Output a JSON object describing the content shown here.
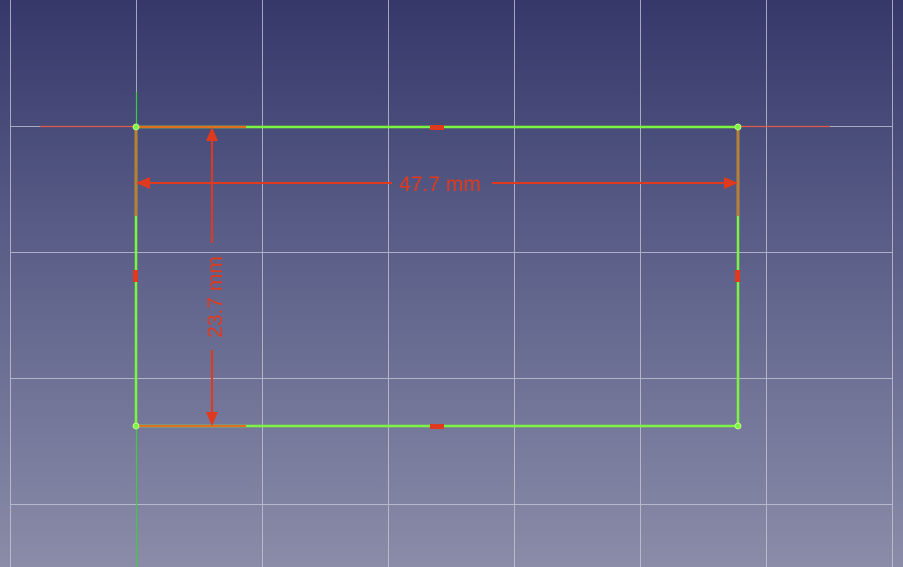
{
  "sketch": {
    "colors": {
      "background_top": "#353869",
      "background_bottom": "#8a8ca8",
      "grid": "#c9cbd8",
      "geometry": "#7cf542",
      "constraint": "#e03a1e",
      "x_axis": "#e05a4a",
      "y_axis": "#3ecc3e"
    },
    "dimensions": {
      "horizontal": "47.7 mm",
      "vertical": "23.7 mm"
    }
  }
}
